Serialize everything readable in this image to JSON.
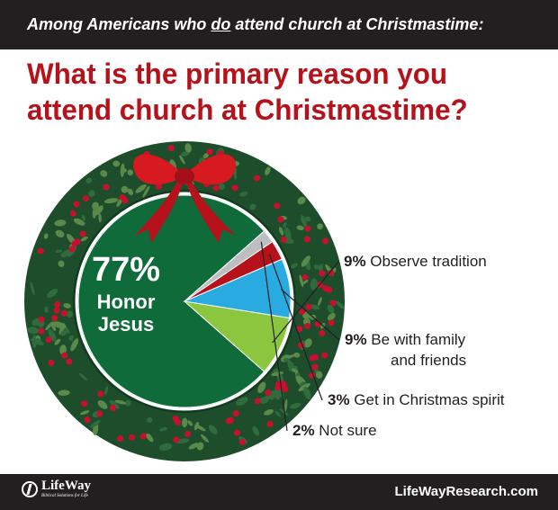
{
  "header": {
    "subtitle_before": "Among Americans who ",
    "subtitle_emph": "do",
    "subtitle_after": " attend church at Christmastime:",
    "title": "What is the primary reason you attend church at Christmastime?"
  },
  "chart_data": {
    "type": "pie",
    "values": [
      77,
      9,
      9,
      3,
      2
    ],
    "labels": [
      "Honor Jesus",
      "Observe tradition",
      "Be with family and friends",
      "Get in Christmas spirit",
      "Not sure"
    ],
    "pct_labels": [
      "77%",
      "9%",
      "9%",
      "3%",
      "2%"
    ],
    "colors": [
      "#0f6b3a",
      "#8cc63f",
      "#29abe2",
      "#b5121b",
      "#bcbec0"
    ],
    "label_lines": [
      [
        "Honor",
        "Jesus"
      ],
      [
        "Observe tradition"
      ],
      [
        "Be with family",
        "and friends"
      ],
      [
        "Get in Christmas spirit"
      ],
      [
        "Not sure"
      ]
    ]
  },
  "footer": {
    "logo_name": "LifeWay",
    "logo_tagline": "Biblical Solutions for Life",
    "url": "LifeWayResearch.com"
  },
  "colors": {
    "title_red": "#b5121b",
    "bar_black": "#231f20",
    "wreath_green": "#1e4d2b",
    "berry_red": "#c8102e",
    "bow_red": "#d71920"
  }
}
